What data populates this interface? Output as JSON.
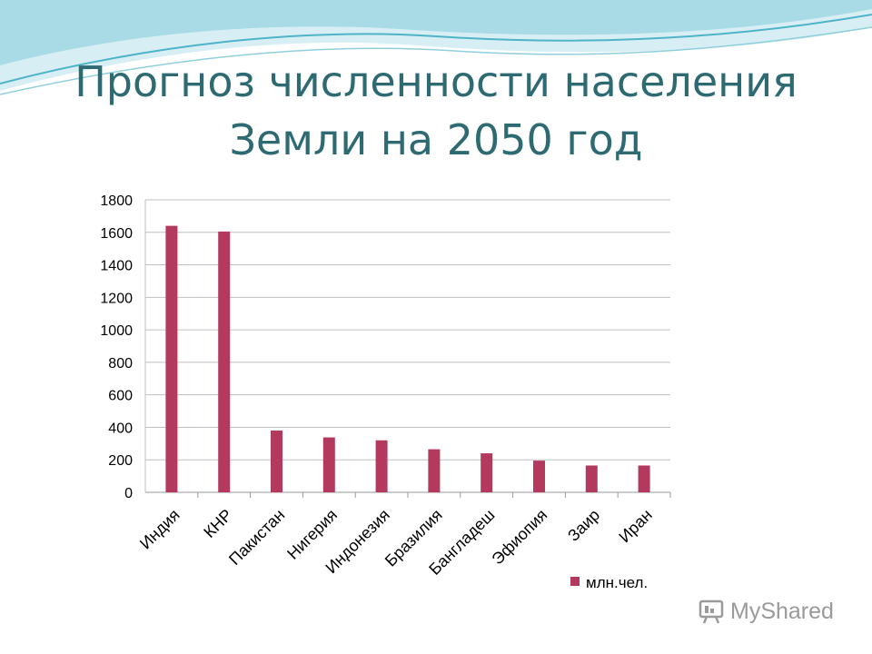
{
  "slide": {
    "title_line1": "Прогноз численности населения",
    "title_line2": "Земли на 2050 год"
  },
  "watermark": {
    "text": "MyShared"
  },
  "colors": {
    "title": "#2d6a72",
    "bar": "#b3395f",
    "grid": "#bfbfbf",
    "wave_dark": "#4fb3c8",
    "wave_light": "#bfe6ee"
  },
  "chart_data": {
    "type": "bar",
    "categories": [
      "Индия",
      "КНР",
      "Пакистан",
      "Нигерия",
      "Индонезия",
      "Бразилия",
      "Бангладеш",
      "Эфиопия",
      "Заир",
      "Иран"
    ],
    "series": [
      {
        "name": "млн.чел.",
        "values": [
          1640,
          1605,
          380,
          338,
          320,
          265,
          240,
          195,
          165,
          165
        ]
      }
    ],
    "ylim": [
      0,
      1800
    ],
    "yticks": [
      0,
      200,
      400,
      600,
      800,
      1000,
      1200,
      1400,
      1600,
      1800
    ],
    "grid": true,
    "legend": "bottom-right",
    "xlabel": "",
    "ylabel": ""
  }
}
